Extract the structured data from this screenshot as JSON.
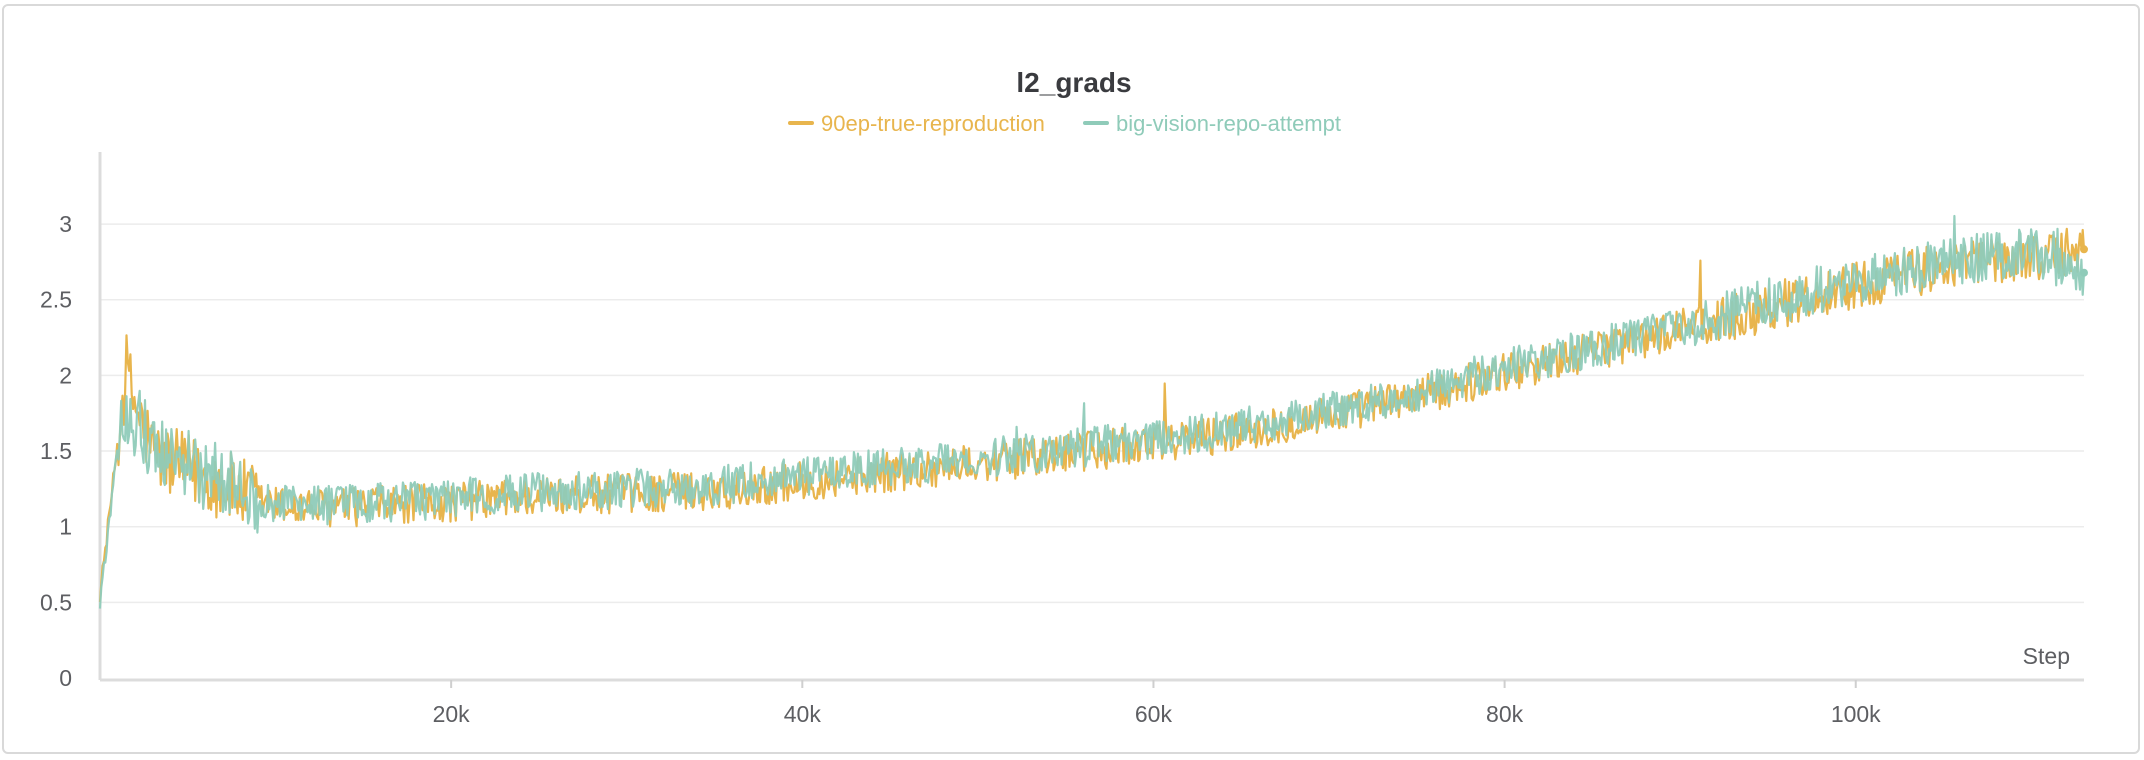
{
  "chart_data": {
    "type": "line",
    "title": "l2_grads",
    "xlabel": "Step",
    "ylabel": "",
    "xlim": [
      0,
      113000
    ],
    "ylim": [
      0,
      3.45
    ],
    "x_ticks": [
      20000,
      40000,
      60000,
      80000,
      100000
    ],
    "x_tick_labels": [
      "20k",
      "40k",
      "60k",
      "80k",
      "100k"
    ],
    "y_ticks": [
      0,
      0.5,
      1,
      1.5,
      2,
      2.5,
      3
    ],
    "y_tick_labels": [
      "0",
      "0.5",
      "1",
      "1.5",
      "2",
      "2.5",
      "3"
    ],
    "grid": "horizontal",
    "legend_position": "top-center",
    "series": [
      {
        "name": "90ep-true-reproduction",
        "color": "#e8b54d",
        "x": [
          0,
          500,
          1000,
          1500,
          2000,
          3000,
          4000,
          5000,
          6000,
          7000,
          8000,
          9000,
          10000,
          12000,
          14000,
          16000,
          18000,
          20000,
          22000,
          25000,
          30000,
          35000,
          40000,
          45000,
          50000,
          55000,
          60000,
          65000,
          70000,
          75000,
          80000,
          85000,
          90000,
          95000,
          100000,
          105000,
          110000,
          113000
        ],
        "y": [
          0.55,
          1.05,
          1.55,
          2.05,
          1.8,
          1.5,
          1.42,
          1.38,
          1.32,
          1.28,
          1.22,
          1.17,
          1.14,
          1.12,
          1.13,
          1.14,
          1.15,
          1.16,
          1.18,
          1.2,
          1.22,
          1.24,
          1.3,
          1.36,
          1.42,
          1.48,
          1.55,
          1.63,
          1.74,
          1.86,
          2.02,
          2.16,
          2.3,
          2.45,
          2.6,
          2.72,
          2.79,
          2.82
        ]
      },
      {
        "name": "big-vision-repo-attempt",
        "color": "#8fcbb9",
        "x": [
          0,
          500,
          1000,
          1500,
          2000,
          3000,
          4000,
          5000,
          6000,
          7000,
          8000,
          9000,
          10000,
          12000,
          14000,
          16000,
          18000,
          20000,
          22000,
          25000,
          30000,
          35000,
          40000,
          45000,
          50000,
          55000,
          60000,
          65000,
          70000,
          75000,
          80000,
          85000,
          90000,
          95000,
          100000,
          105000,
          110000,
          113000
        ],
        "y": [
          0.5,
          1.0,
          1.5,
          1.8,
          1.7,
          1.55,
          1.45,
          1.4,
          1.35,
          1.3,
          1.24,
          1.19,
          1.16,
          1.14,
          1.15,
          1.16,
          1.17,
          1.19,
          1.21,
          1.23,
          1.25,
          1.27,
          1.33,
          1.39,
          1.45,
          1.51,
          1.58,
          1.66,
          1.77,
          1.89,
          2.05,
          2.18,
          2.33,
          2.48,
          2.63,
          2.75,
          2.82,
          2.65
        ]
      }
    ]
  }
}
